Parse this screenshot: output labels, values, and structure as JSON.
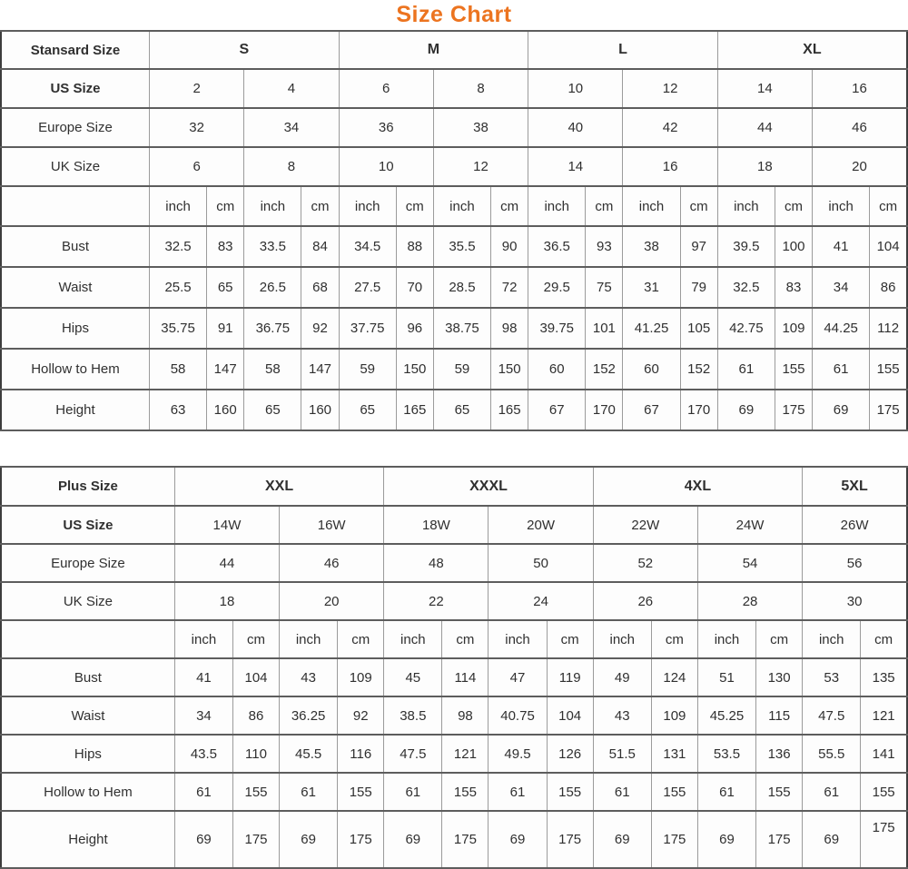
{
  "title": "Size Chart",
  "accent_color": "#EC7420",
  "chart_data": [
    {
      "type": "table",
      "header_label": "Stansard Size",
      "size_groups": [
        {
          "label": "S",
          "span": 4
        },
        {
          "label": "M",
          "span": 4
        },
        {
          "label": "L",
          "span": 4
        },
        {
          "label": "XL",
          "span": 4
        }
      ],
      "rows_top": [
        {
          "label": "US Size",
          "bold": true,
          "values": [
            "2",
            "4",
            "6",
            "8",
            "10",
            "12",
            "14",
            "16"
          ]
        },
        {
          "label": "Europe Size",
          "values": [
            "32",
            "34",
            "36",
            "38",
            "40",
            "42",
            "44",
            "46"
          ]
        },
        {
          "label": "UK Size",
          "values": [
            "6",
            "8",
            "10",
            "12",
            "14",
            "16",
            "18",
            "20"
          ]
        }
      ],
      "unit_row": [
        "inch",
        "cm",
        "inch",
        "cm",
        "inch",
        "cm",
        "inch",
        "cm",
        "inch",
        "cm",
        "inch",
        "cm",
        "inch",
        "cm",
        "inch",
        "cm"
      ],
      "measure_rows": [
        {
          "label": "Bust",
          "values": [
            "32.5",
            "83",
            "33.5",
            "84",
            "34.5",
            "88",
            "35.5",
            "90",
            "36.5",
            "93",
            "38",
            "97",
            "39.5",
            "100",
            "41",
            "104"
          ]
        },
        {
          "label": "Waist",
          "values": [
            "25.5",
            "65",
            "26.5",
            "68",
            "27.5",
            "70",
            "28.5",
            "72",
            "29.5",
            "75",
            "31",
            "79",
            "32.5",
            "83",
            "34",
            "86"
          ]
        },
        {
          "label": "Hips",
          "values": [
            "35.75",
            "91",
            "36.75",
            "92",
            "37.75",
            "96",
            "38.75",
            "98",
            "39.75",
            "101",
            "41.25",
            "105",
            "42.75",
            "109",
            "44.25",
            "112"
          ]
        },
        {
          "label": "Hollow to Hem",
          "values": [
            "58",
            "147",
            "58",
            "147",
            "59",
            "150",
            "59",
            "150",
            "60",
            "152",
            "60",
            "152",
            "61",
            "155",
            "61",
            "155"
          ]
        },
        {
          "label": "Height",
          "values": [
            "63",
            "160",
            "65",
            "160",
            "65",
            "165",
            "65",
            "165",
            "67",
            "170",
            "67",
            "170",
            "69",
            "175",
            "69",
            "175"
          ]
        }
      ]
    },
    {
      "type": "table",
      "header_label": "Plus Size",
      "size_groups": [
        {
          "label": "XXL",
          "span": 4
        },
        {
          "label": "XXXL",
          "span": 4
        },
        {
          "label": "4XL",
          "span": 4
        },
        {
          "label": "5XL",
          "span": 2
        }
      ],
      "rows_top": [
        {
          "label": "US Size",
          "bold": true,
          "values": [
            "14W",
            "16W",
            "18W",
            "20W",
            "22W",
            "24W",
            "26W"
          ]
        },
        {
          "label": "Europe Size",
          "values": [
            "44",
            "46",
            "48",
            "50",
            "52",
            "54",
            "56"
          ]
        },
        {
          "label": "UK Size",
          "values": [
            "18",
            "20",
            "22",
            "24",
            "26",
            "28",
            "30"
          ]
        }
      ],
      "unit_row": [
        "inch",
        "cm",
        "inch",
        "cm",
        "inch",
        "cm",
        "inch",
        "cm",
        "inch",
        "cm",
        "inch",
        "cm",
        "inch",
        "cm"
      ],
      "measure_rows": [
        {
          "label": "Bust",
          "values": [
            "41",
            "104",
            "43",
            "109",
            "45",
            "114",
            "47",
            "119",
            "49",
            "124",
            "51",
            "130",
            "53",
            "135"
          ]
        },
        {
          "label": "Waist",
          "values": [
            "34",
            "86",
            "36.25",
            "92",
            "38.5",
            "98",
            "40.75",
            "104",
            "43",
            "109",
            "45.25",
            "115",
            "47.5",
            "121"
          ]
        },
        {
          "label": "Hips",
          "values": [
            "43.5",
            "110",
            "45.5",
            "116",
            "47.5",
            "121",
            "49.5",
            "126",
            "51.5",
            "131",
            "53.5",
            "136",
            "55.5",
            "141"
          ]
        },
        {
          "label": "Hollow to Hem",
          "values": [
            "61",
            "155",
            "61",
            "155",
            "61",
            "155",
            "61",
            "155",
            "61",
            "155",
            "61",
            "155",
            "61",
            "155"
          ]
        },
        {
          "label": "Height",
          "tall": true,
          "last_value_raised": true,
          "values": [
            "69",
            "175",
            "69",
            "175",
            "69",
            "175",
            "69",
            "175",
            "69",
            "175",
            "69",
            "175",
            "69",
            "175"
          ]
        }
      ]
    }
  ]
}
